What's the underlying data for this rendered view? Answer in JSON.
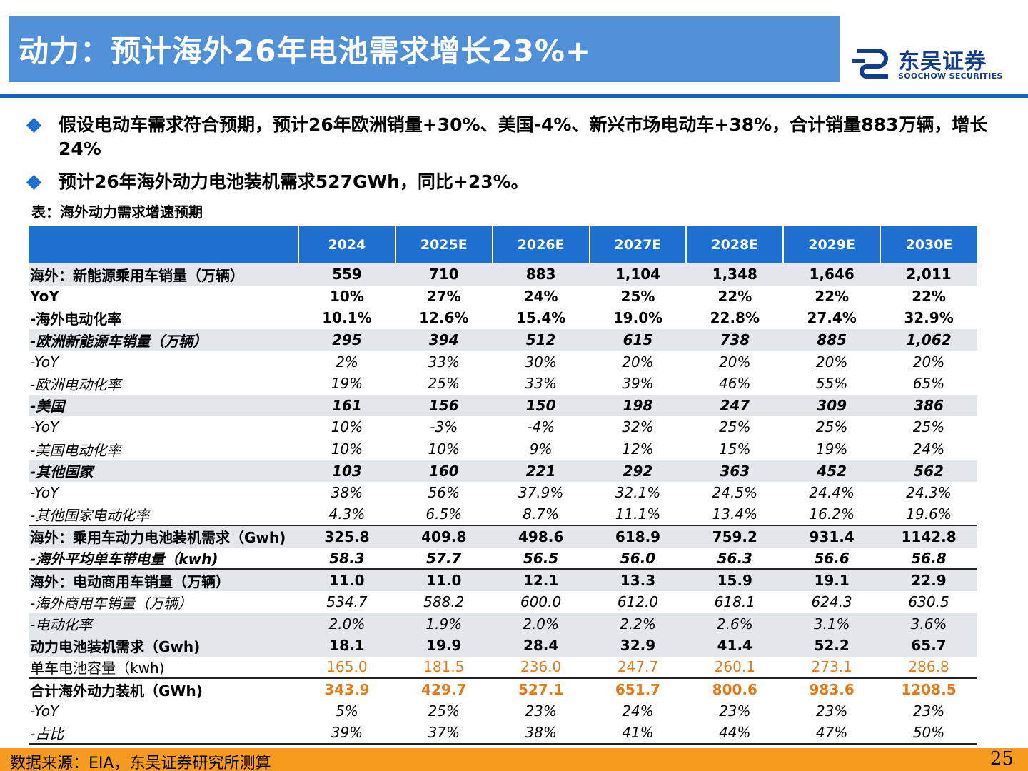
{
  "header": {
    "title": "动力：预计海外26年电池需求增长23%+",
    "logo_cn": "东吴证券",
    "logo_en": "SOOCHOW SECURITIES"
  },
  "bullets": [
    "假设电动车需求符合预期，预计26年欧洲销量+30%、美国-4%、新兴市场电动车+38%，合计销量883万辆，增长24%",
    "预计26年海外动力电池装机需求527GWh，同比+23%。"
  ],
  "table": {
    "caption": "表：海外动力需求增速预期",
    "columns": [
      "2024",
      "2025E",
      "2026E",
      "2027E",
      "2028E",
      "2029E",
      "2030E"
    ],
    "rows": [
      {
        "label": "海外：新能源乘用车销量（万辆）",
        "values": [
          "559",
          "710",
          "883",
          "1,104",
          "1,348",
          "1,646",
          "2,011"
        ]
      },
      {
        "label": "YoY",
        "values": [
          "10%",
          "27%",
          "24%",
          "25%",
          "22%",
          "22%",
          "22%"
        ]
      },
      {
        "label": "-海外电动化率",
        "values": [
          "10.1%",
          "12.6%",
          "15.4%",
          "19.0%",
          "22.8%",
          "27.4%",
          "32.9%"
        ]
      },
      {
        "label": "-欧洲新能源车销量（万辆）",
        "values": [
          "295",
          "394",
          "512",
          "615",
          "738",
          "885",
          "1,062"
        ]
      },
      {
        "label": "-YoY",
        "values": [
          "2%",
          "33%",
          "30%",
          "20%",
          "20%",
          "20%",
          "20%"
        ]
      },
      {
        "label": "-欧洲电动化率",
        "values": [
          "19%",
          "25%",
          "33%",
          "39%",
          "46%",
          "55%",
          "65%"
        ]
      },
      {
        "label": "-美国",
        "values": [
          "161",
          "156",
          "150",
          "198",
          "247",
          "309",
          "386"
        ]
      },
      {
        "label": "-YoY",
        "values": [
          "10%",
          "-3%",
          "-4%",
          "32%",
          "25%",
          "25%",
          "25%"
        ]
      },
      {
        "label": "-美国电动化率",
        "values": [
          "10%",
          "10%",
          "9%",
          "12%",
          "15%",
          "19%",
          "24%"
        ]
      },
      {
        "label": "-其他国家",
        "values": [
          "103",
          "160",
          "221",
          "292",
          "363",
          "452",
          "562"
        ]
      },
      {
        "label": "-YoY",
        "values": [
          "38%",
          "56%",
          "37.9%",
          "32.1%",
          "24.5%",
          "24.4%",
          "24.3%"
        ]
      },
      {
        "label": "-其他国家电动化率",
        "values": [
          "4.3%",
          "6.5%",
          "8.7%",
          "11.1%",
          "13.4%",
          "16.2%",
          "19.6%"
        ]
      },
      {
        "label": "海外：乘用车动力电池装机需求（Gwh)",
        "values": [
          "325.8",
          "409.8",
          "498.6",
          "618.9",
          "759.2",
          "931.4",
          "1142.8"
        ]
      },
      {
        "label": "-海外平均单车带电量（kwh)",
        "values": [
          "58.3",
          "57.7",
          "56.5",
          "56.0",
          "56.3",
          "56.6",
          "56.8"
        ]
      },
      {
        "label": "海外：电动商用车销量（万辆）",
        "values": [
          "11.0",
          "11.0",
          "12.1",
          "13.3",
          "15.9",
          "19.1",
          "22.9"
        ]
      },
      {
        "label": "-海外商用车销量（万辆）",
        "values": [
          "534.7",
          "588.2",
          "600.0",
          "612.0",
          "618.1",
          "624.3",
          "630.5"
        ]
      },
      {
        "label": "-电动化率",
        "values": [
          "2.0%",
          "1.9%",
          "2.0%",
          "2.2%",
          "2.6%",
          "3.1%",
          "3.6%"
        ]
      },
      {
        "label": "动力电池装机需求（Gwh)",
        "values": [
          "18.1",
          "19.9",
          "28.4",
          "32.9",
          "41.4",
          "52.2",
          "65.7"
        ]
      },
      {
        "label": "单车电池容量（kwh)",
        "values": [
          "165.0",
          "181.5",
          "236.0",
          "247.7",
          "260.1",
          "273.1",
          "286.8"
        ]
      },
      {
        "label": "合计海外动力装机（GWh)",
        "values": [
          "343.9",
          "429.7",
          "527.1",
          "651.7",
          "800.6",
          "983.6",
          "1208.5"
        ]
      },
      {
        "label": "-YoY",
        "values": [
          "5%",
          "25%",
          "23%",
          "24%",
          "23%",
          "23%",
          "23%"
        ]
      },
      {
        "label": "-占比",
        "values": [
          "39%",
          "37%",
          "38%",
          "41%",
          "44%",
          "47%",
          "50%"
        ]
      }
    ]
  },
  "footer": {
    "source": "数据来源：EIA，东吴证券研究所测算",
    "page_number": "25"
  },
  "colors": {
    "title_bar": "#5090d8",
    "header_blue": "#1f6fd0",
    "footer_orange": "#f59b1e",
    "highlight_orange": "#e07b1c",
    "row_shade": "#e3e7ec"
  }
}
